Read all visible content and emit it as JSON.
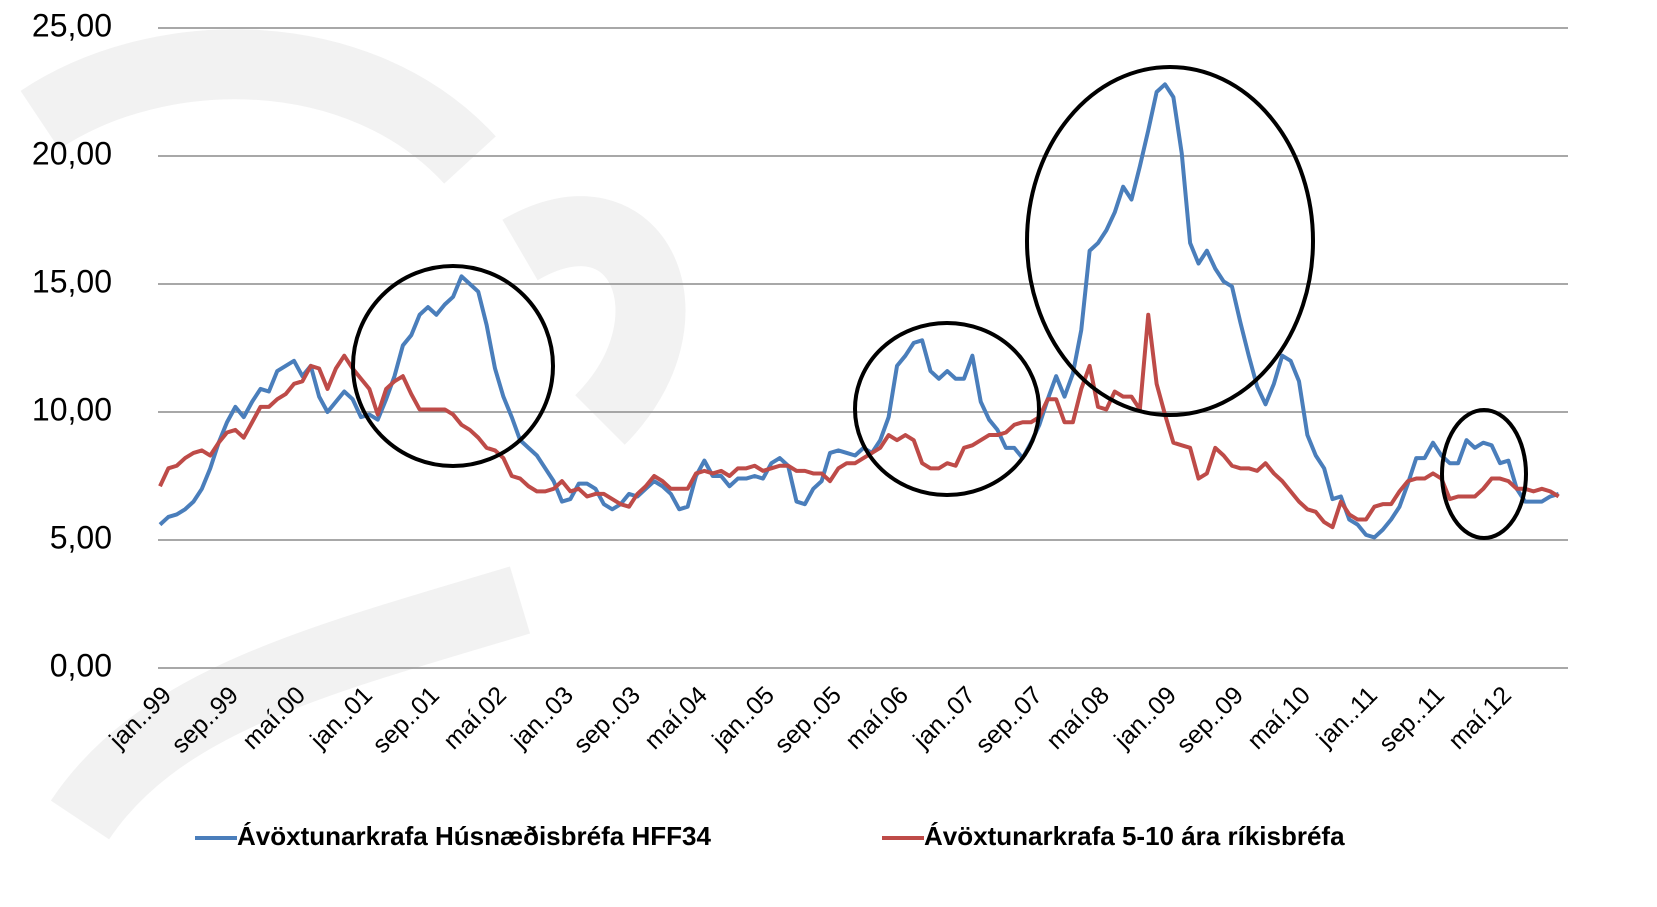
{
  "chart_data": {
    "type": "line",
    "categories": [
      "jan..99",
      null,
      null,
      null,
      null,
      null,
      null,
      null,
      "sep..99",
      null,
      null,
      null,
      null,
      null,
      null,
      null,
      "maí.00",
      null,
      null,
      null,
      null,
      null,
      null,
      null,
      "jan..01",
      null,
      null,
      null,
      null,
      null,
      null,
      null,
      "sep..01",
      null,
      null,
      null,
      null,
      null,
      null,
      null,
      "maí.02",
      null,
      null,
      null,
      null,
      null,
      null,
      null,
      "jan..03",
      null,
      null,
      null,
      null,
      null,
      null,
      null,
      "sep..03",
      null,
      null,
      null,
      null,
      null,
      null,
      null,
      "maí.04",
      null,
      null,
      null,
      null,
      null,
      null,
      null,
      "jan..05",
      null,
      null,
      null,
      null,
      null,
      null,
      null,
      "sep..05",
      null,
      null,
      null,
      null,
      null,
      null,
      null,
      "maí.06",
      null,
      null,
      null,
      null,
      null,
      null,
      null,
      "jan..07",
      null,
      null,
      null,
      null,
      null,
      null,
      null,
      "sep..07",
      null,
      null,
      null,
      null,
      null,
      null,
      null,
      "maí.08",
      null,
      null,
      null,
      null,
      null,
      null,
      null,
      "jan..09",
      null,
      null,
      null,
      null,
      null,
      null,
      null,
      "sep..09",
      null,
      null,
      null,
      null,
      null,
      null,
      null,
      "maí.10",
      null,
      null,
      null,
      null,
      null,
      null,
      null,
      "jan..11",
      null,
      null,
      null,
      null,
      null,
      null,
      null,
      "sep..11",
      null,
      null,
      null,
      null,
      null,
      null,
      null,
      "maí.12",
      null,
      null,
      null,
      null,
      null,
      null,
      null
    ],
    "series": [
      {
        "name": "Ávöxtunarkrafa Húsnæðisbréfa HFF34",
        "color": "#4a7ebb",
        "values": [
          5.6,
          5.9,
          6.0,
          6.2,
          6.5,
          7.0,
          7.8,
          8.8,
          9.6,
          10.2,
          9.8,
          10.4,
          10.9,
          10.8,
          11.6,
          11.8,
          12.0,
          11.4,
          11.8,
          10.6,
          10.0,
          10.4,
          10.8,
          10.5,
          9.8,
          9.9,
          9.7,
          10.5,
          11.4,
          12.6,
          13.0,
          13.8,
          14.1,
          13.8,
          14.2,
          14.5,
          15.3,
          15.0,
          14.7,
          13.4,
          11.7,
          10.6,
          9.8,
          8.9,
          8.6,
          8.3,
          7.8,
          7.3,
          6.5,
          6.6,
          7.2,
          7.2,
          7.0,
          6.4,
          6.2,
          6.4,
          6.8,
          6.7,
          7.0,
          7.3,
          7.1,
          6.8,
          6.2,
          6.3,
          7.5,
          8.1,
          7.5,
          7.5,
          7.1,
          7.4,
          7.4,
          7.5,
          7.4,
          8.0,
          8.2,
          7.9,
          6.5,
          6.4,
          7.0,
          7.3,
          8.4,
          8.5,
          8.4,
          8.3,
          8.6,
          8.4,
          8.9,
          9.8,
          11.8,
          12.2,
          12.7,
          12.8,
          11.6,
          11.3,
          11.6,
          11.3,
          11.3,
          12.2,
          10.4,
          9.7,
          9.3,
          8.6,
          8.6,
          8.2,
          8.8,
          9.5,
          10.5,
          11.4,
          10.6,
          11.5,
          13.2,
          16.3,
          16.6,
          17.1,
          17.8,
          18.8,
          18.3,
          19.6,
          21.0,
          22.5,
          22.8,
          22.3,
          20.1,
          16.6,
          15.8,
          16.3,
          15.6,
          15.1,
          14.9,
          13.5,
          12.2,
          11.0,
          10.3,
          11.1,
          12.2,
          12.0,
          11.2,
          9.1,
          8.3,
          7.8,
          6.6,
          6.7,
          5.8,
          5.6,
          5.2,
          5.1,
          5.4,
          5.8,
          6.3,
          7.2,
          8.2,
          8.2,
          8.8,
          8.3,
          8.0,
          8.0,
          8.9,
          8.6,
          8.8,
          8.7,
          8.0,
          8.1,
          7.0,
          6.5,
          6.5,
          6.5,
          6.7,
          6.8
        ]
      },
      {
        "name": "Ávöxtunarkrafa 5-10 ára ríkisbréfa",
        "color": "#be4b48",
        "values": [
          7.1,
          7.8,
          7.9,
          8.2,
          8.4,
          8.5,
          8.3,
          8.8,
          9.2,
          9.3,
          9.0,
          9.6,
          10.2,
          10.2,
          10.5,
          10.7,
          11.1,
          11.2,
          11.8,
          11.7,
          10.9,
          11.7,
          12.2,
          11.7,
          11.3,
          10.9,
          9.9,
          10.9,
          11.2,
          11.4,
          10.7,
          10.1,
          10.1,
          10.1,
          10.1,
          9.9,
          9.5,
          9.3,
          9.0,
          8.6,
          8.5,
          8.2,
          7.5,
          7.4,
          7.1,
          6.9,
          6.9,
          7.0,
          7.3,
          6.9,
          7.0,
          6.7,
          6.8,
          6.8,
          6.6,
          6.4,
          6.3,
          6.8,
          7.1,
          7.5,
          7.3,
          7.0,
          7.0,
          7.0,
          7.6,
          7.7,
          7.6,
          7.7,
          7.5,
          7.8,
          7.8,
          7.9,
          7.7,
          7.8,
          7.9,
          7.9,
          7.7,
          7.7,
          7.6,
          7.6,
          7.3,
          7.8,
          8.0,
          8.0,
          8.2,
          8.4,
          8.6,
          9.1,
          8.9,
          9.1,
          8.9,
          8.0,
          7.8,
          7.8,
          8.0,
          7.9,
          8.6,
          8.7,
          8.9,
          9.1,
          9.1,
          9.2,
          9.5,
          9.6,
          9.6,
          9.8,
          10.5,
          10.5,
          9.6,
          9.6,
          10.9,
          11.8,
          10.2,
          10.1,
          10.8,
          10.6,
          10.6,
          10.1,
          13.8,
          11.1,
          9.9,
          8.8,
          8.7,
          8.6,
          7.4,
          7.6,
          8.6,
          8.3,
          7.9,
          7.8,
          7.8,
          7.7,
          8.0,
          7.6,
          7.3,
          6.9,
          6.5,
          6.2,
          6.1,
          5.7,
          5.5,
          6.5,
          6.0,
          5.8,
          5.8,
          6.3,
          6.4,
          6.4,
          6.9,
          7.3,
          7.4,
          7.4,
          7.6,
          7.4,
          6.6,
          6.7,
          6.7,
          6.7,
          7.0,
          7.4,
          7.4,
          7.3,
          7.0,
          7.0,
          6.9,
          7.0,
          6.9,
          6.7
        ]
      }
    ],
    "ylim": [
      0,
      25
    ],
    "yticks": [
      {
        "value": 0,
        "label": "0,00"
      },
      {
        "value": 5,
        "label": "5,00"
      },
      {
        "value": 10,
        "label": "10,00"
      },
      {
        "value": 15,
        "label": "15,00"
      },
      {
        "value": 20,
        "label": "20,00"
      },
      {
        "value": 25,
        "label": "25,00"
      }
    ],
    "grid": true,
    "legend": "bottom"
  }
}
